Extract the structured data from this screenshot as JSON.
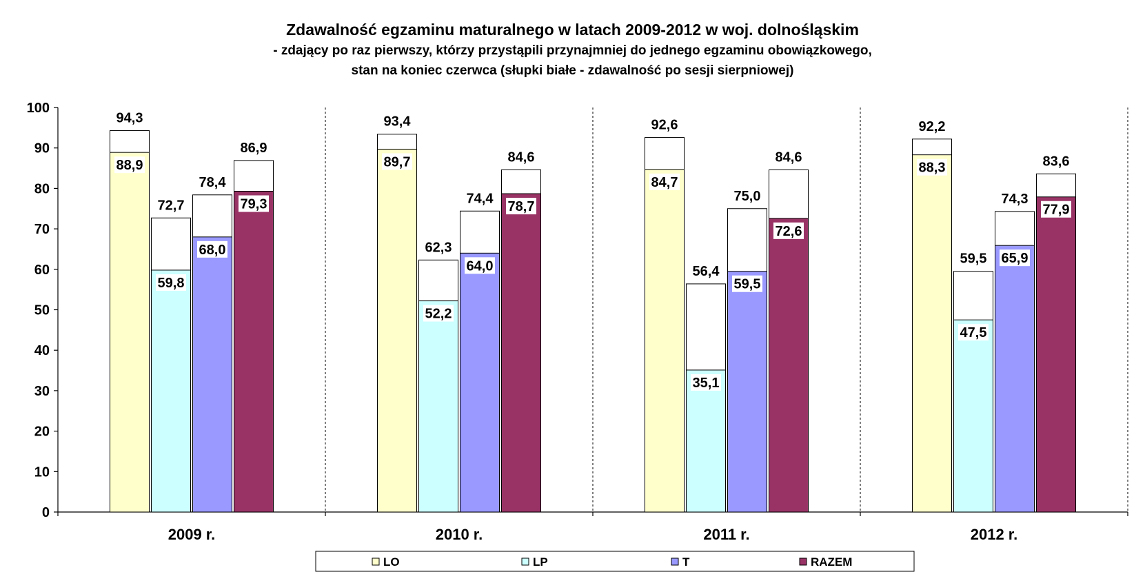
{
  "chart_data": {
    "type": "bar",
    "title": "Zdawalność egzaminu maturalnego w latach 2009-2012 w woj. dolnośląskim",
    "subtitle_lines": [
      "- zdający po raz pierwszy, którzy przystąpili przynajmniej do jednego egzaminu obowiązkowego,",
      "stan na koniec czerwca (słupki białe - zdawalność po sesji sierpniowej)"
    ],
    "categories": [
      "2009 r.",
      "2010 r.",
      "2011 r.",
      "2012 r."
    ],
    "series": [
      {
        "name": "LO",
        "color": "#FFFFCC",
        "june": [
          88.9,
          89.7,
          84.7,
          88.3
        ],
        "june_labels": [
          "88,9",
          "89,7",
          "84,7",
          "88,3"
        ],
        "august": [
          94.3,
          93.4,
          92.6,
          92.2
        ],
        "august_labels": [
          "94,3",
          "93,4",
          "92,6",
          "92,2"
        ]
      },
      {
        "name": "LP",
        "color": "#CCFFFF",
        "june": [
          59.8,
          52.2,
          35.1,
          47.5
        ],
        "june_labels": [
          "59,8",
          "52,2",
          "35,1",
          "47,5"
        ],
        "august": [
          72.7,
          62.3,
          56.4,
          59.5
        ],
        "august_labels": [
          "72,7",
          "62,3",
          "56,4",
          "59,5"
        ]
      },
      {
        "name": "T",
        "color": "#9999FF",
        "june": [
          68.0,
          64.0,
          59.5,
          65.9
        ],
        "june_labels": [
          "68,0",
          "64,0",
          "59,5",
          "65,9"
        ],
        "august": [
          78.4,
          74.4,
          75.0,
          74.3
        ],
        "august_labels": [
          "78,4",
          "74,4",
          "75,0",
          "74,3"
        ]
      },
      {
        "name": "RAZEM",
        "color": "#993366",
        "june": [
          79.3,
          78.7,
          72.6,
          77.9
        ],
        "june_labels": [
          "79,3",
          "78,7",
          "72,6",
          "77,9"
        ],
        "august": [
          86.9,
          84.6,
          84.6,
          83.6
        ],
        "august_labels": [
          "86,9",
          "84,6",
          "84,6",
          "83,6"
        ]
      }
    ],
    "august_bar_color": "#FFFFFF",
    "ylim": [
      0,
      100
    ],
    "yticks": [
      "0",
      "10",
      "20",
      "30",
      "40",
      "50",
      "60",
      "70",
      "80",
      "90",
      "100"
    ],
    "grid": false,
    "category_separators": "dashed",
    "legend": {
      "position": "bottom",
      "entries": [
        "LO",
        "LP",
        "T",
        "RAZEM"
      ]
    }
  }
}
